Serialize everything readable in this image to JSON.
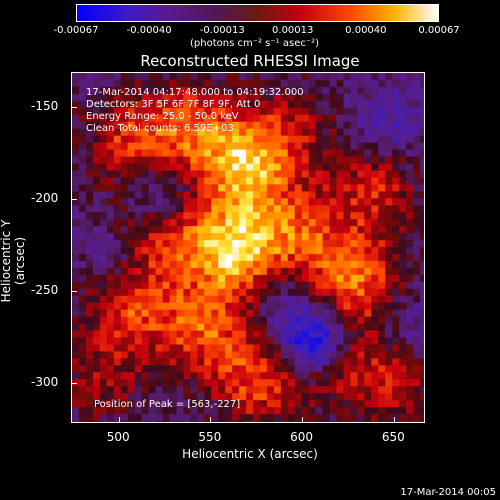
{
  "colorbar": {
    "ticks": [
      "-0.00067",
      "-0.00040",
      "-0.00013",
      "0.00013",
      "0.00040",
      "0.00067"
    ],
    "tick_values": [
      -0.00067,
      -0.0004,
      -0.00013,
      0.00013,
      0.0004,
      0.00067
    ],
    "units": "(photons cm⁻² s⁻¹ asec⁻²)",
    "colors": [
      "#0000ff",
      "#5a1a8c",
      "#6a1a10",
      "#ff4a00",
      "#ffb400",
      "#ffffff"
    ]
  },
  "annotations": {
    "time_range": "17-Mar-2014 04:17:48.000 to 04:19:32.000",
    "detectors": "Detectors: 3F 5F 6F 7F 8F 9F, Att 0",
    "energy": "Energy Range: 25.0 - 50.0 keV",
    "clean": "Clean     Total counts: 6.59E+03",
    "peak": "Position of Peak = [563,-227]"
  },
  "footer": {
    "stamp": "17-Mar-2014 00:05"
  },
  "chart_data": {
    "type": "heatmap",
    "title": "Reconstructed RHESSI Image",
    "xlabel": "Heliocentric X (arcsec)",
    "ylabel": "Heliocentric Y (arcsec)",
    "xlim": [
      474,
      667
    ],
    "ylim": [
      -322,
      -131
    ],
    "x_ticks": [
      500,
      550,
      600,
      650
    ],
    "y_ticks": [
      -150,
      -200,
      -250,
      -300
    ],
    "peak": [
      563,
      -227
    ],
    "blobs": [
      {
        "x": 563,
        "y": -227,
        "v": 1.0
      },
      {
        "x": 570,
        "y": -182,
        "v": 0.88
      },
      {
        "x": 540,
        "y": -160,
        "v": 0.6
      },
      {
        "x": 505,
        "y": -168,
        "v": 0.55
      },
      {
        "x": 520,
        "y": -220,
        "v": 0.6
      },
      {
        "x": 505,
        "y": -260,
        "v": 0.55
      },
      {
        "x": 545,
        "y": -270,
        "v": 0.62
      },
      {
        "x": 575,
        "y": -300,
        "v": 0.6
      },
      {
        "x": 600,
        "y": -220,
        "v": 0.55
      },
      {
        "x": 630,
        "y": -245,
        "v": 0.72
      },
      {
        "x": 640,
        "y": -195,
        "v": 0.5
      },
      {
        "x": 615,
        "y": -290,
        "v": 0.4
      },
      {
        "x": 650,
        "y": -300,
        "v": 0.45
      },
      {
        "x": 490,
        "y": -300,
        "v": 0.35
      },
      {
        "x": 595,
        "y": -160,
        "v": 0.35
      },
      {
        "x": 606,
        "y": -278,
        "v": -1.0
      },
      {
        "x": 520,
        "y": -200,
        "v": -0.45
      },
      {
        "x": 500,
        "y": -230,
        "v": -0.3
      },
      {
        "x": 645,
        "y": -160,
        "v": -0.3
      },
      {
        "x": 590,
        "y": -250,
        "v": -0.25
      },
      {
        "x": 660,
        "y": -270,
        "v": -0.25
      }
    ]
  }
}
